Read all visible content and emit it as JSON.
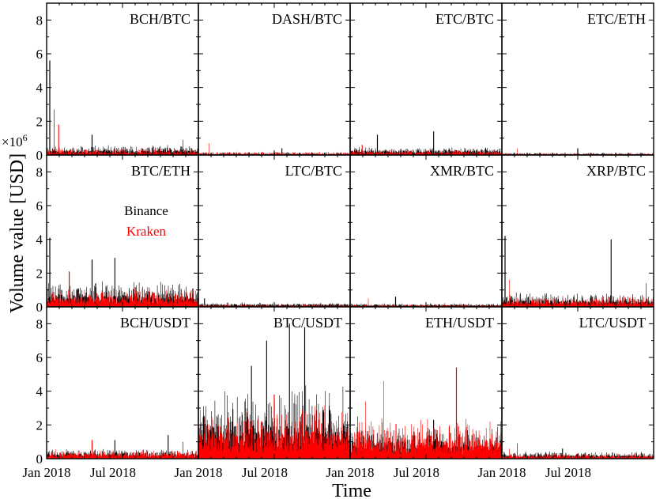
{
  "chart_data": {
    "type": "line",
    "ylabel": "Volume value [USD]",
    "xlabel": "Time",
    "y_multiplier": "×10",
    "y_multiplier_exp": "6",
    "ylim": [
      0,
      9
    ],
    "y_ticks": [
      "0",
      "2",
      "4",
      "6",
      "8"
    ],
    "x_tick_labels": [
      "Jan 2018",
      "Jul 2018",
      "Jan 2018",
      "Jul 2018",
      "Jan 2018",
      "Jul 2018",
      "Jan 2018",
      "Jul 2018"
    ],
    "grid": false,
    "legend": {
      "placement": "inside panel BTC/ETH",
      "entries": [
        {
          "label": "Binance",
          "color": "#000000"
        },
        {
          "label": "Kraken",
          "color": "#ff0000"
        }
      ]
    },
    "series_colors": {
      "binance": "#000000",
      "kraken": "#ff0000"
    },
    "panels": [
      {
        "title": "BCH/BTC",
        "binance": {
          "base": 0.2,
          "noise": 0.35,
          "spikes": [
            [
              0.02,
              5.6
            ],
            [
              0.05,
              2.7
            ],
            [
              0.3,
              1.2
            ],
            [
              0.9,
              0.9
            ]
          ]
        },
        "kraken": {
          "base": 0.1,
          "noise": 0.3,
          "spikes": [
            [
              0.08,
              1.8
            ]
          ]
        }
      },
      {
        "title": "DASH/BTC",
        "binance": {
          "base": 0.05,
          "noise": 0.1,
          "spikes": [
            [
              0.55,
              0.4
            ]
          ]
        },
        "kraken": {
          "base": 0.05,
          "noise": 0.15,
          "spikes": [
            [
              0.07,
              0.7
            ]
          ]
        }
      },
      {
        "title": "ETC/BTC",
        "binance": {
          "base": 0.2,
          "noise": 0.25,
          "spikes": [
            [
              0.18,
              1.2
            ],
            [
              0.55,
              1.4
            ]
          ]
        },
        "kraken": {
          "base": 0.1,
          "noise": 0.2,
          "spikes": [
            [
              0.08,
              0.6
            ]
          ]
        }
      },
      {
        "title": "ETC/ETH",
        "binance": {
          "base": 0.04,
          "noise": 0.08,
          "spikes": [
            [
              0.5,
              0.4
            ]
          ]
        },
        "kraken": {
          "base": 0.03,
          "noise": 0.08,
          "spikes": [
            [
              0.1,
              0.4
            ]
          ]
        }
      },
      {
        "title": "BTC/ETH",
        "binance": {
          "base": 0.5,
          "noise": 0.9,
          "spikes": [
            [
              0.02,
              4.1
            ],
            [
              0.3,
              2.8
            ],
            [
              0.45,
              2.9
            ]
          ]
        },
        "kraken": {
          "base": 0.4,
          "noise": 0.7,
          "spikes": [
            [
              0.15,
              2.1
            ]
          ]
        }
      },
      {
        "title": "LTC/BTC",
        "binance": {
          "base": 0.1,
          "noise": 0.15,
          "spikes": [
            [
              0.04,
              0.5
            ]
          ]
        },
        "kraken": {
          "base": 0.05,
          "noise": 0.1,
          "spikes": []
        }
      },
      {
        "title": "XMR/BTC",
        "binance": {
          "base": 0.08,
          "noise": 0.12,
          "spikes": [
            [
              0.3,
              0.6
            ]
          ]
        },
        "kraken": {
          "base": 0.05,
          "noise": 0.1,
          "spikes": [
            [
              0.12,
              0.5
            ]
          ]
        }
      },
      {
        "title": "XRP/BTC",
        "binance": {
          "base": 0.3,
          "noise": 0.5,
          "spikes": [
            [
              0.02,
              4.2
            ],
            [
              0.72,
              4.0
            ],
            [
              0.95,
              1.4
            ]
          ]
        },
        "kraken": {
          "base": 0.2,
          "noise": 0.4,
          "spikes": [
            [
              0.05,
              1.6
            ]
          ]
        }
      },
      {
        "title": "BCH/USDT",
        "binance": {
          "base": 0.2,
          "noise": 0.35,
          "spikes": [
            [
              0.45,
              1.1
            ],
            [
              0.8,
              1.4
            ],
            [
              0.9,
              1.0
            ]
          ]
        },
        "kraken": {
          "base": 0.2,
          "noise": 0.3,
          "spikes": [
            [
              0.3,
              1.1
            ]
          ]
        }
      },
      {
        "title": "BTC/USDT",
        "binance": {
          "base": 1.5,
          "noise": 2.6,
          "spikes": [
            [
              0.45,
              7.0
            ],
            [
              0.6,
              8.0
            ],
            [
              0.7,
              7.8
            ],
            [
              0.35,
              5.5
            ]
          ]
        },
        "kraken": {
          "base": 1.2,
          "noise": 1.8,
          "spikes": [
            [
              0.5,
              3.8
            ]
          ]
        }
      },
      {
        "title": "ETH/USDT",
        "binance": {
          "base": 0.6,
          "noise": 1.2,
          "spikes": [
            [
              0.05,
              2.5
            ],
            [
              0.55,
              2.3
            ]
          ]
        },
        "kraken": {
          "base": 0.8,
          "noise": 1.6,
          "spikes": [
            [
              0.22,
              4.6
            ],
            [
              0.7,
              5.4
            ],
            [
              0.1,
              3.4
            ]
          ]
        }
      },
      {
        "title": "LTC/USDT",
        "binance": {
          "base": 0.15,
          "noise": 0.25,
          "spikes": [
            [
              0.1,
              0.9
            ],
            [
              0.4,
              0.6
            ]
          ]
        },
        "kraken": {
          "base": 0.1,
          "noise": 0.2,
          "spikes": [
            [
              0.05,
              0.6
            ]
          ]
        }
      }
    ]
  }
}
